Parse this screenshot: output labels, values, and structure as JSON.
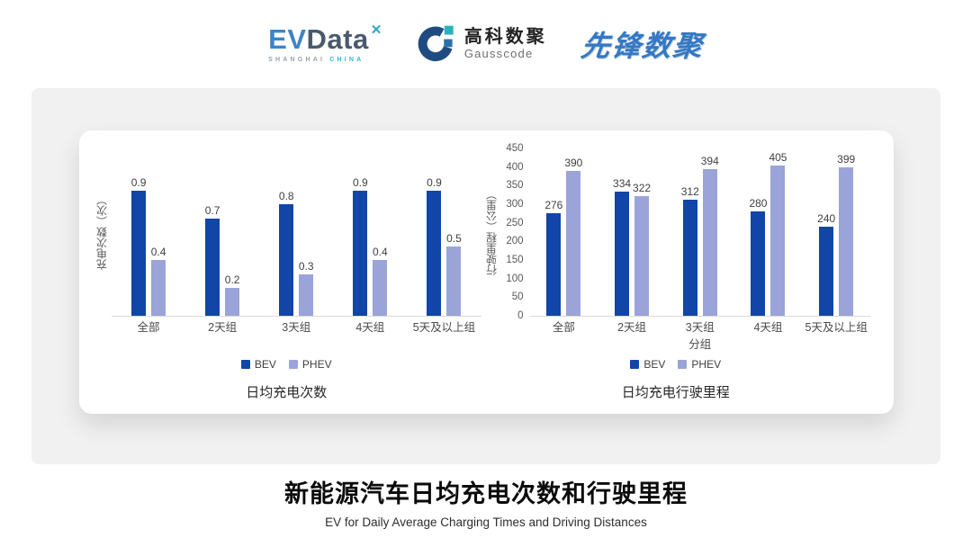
{
  "header": {
    "evdata": {
      "ev": "EV",
      "data": "Data",
      "star_icon": "✕",
      "sub_left": "SHANGHAI",
      "sub_right": "CHINA"
    },
    "gausscode": {
      "cn": "高科数聚",
      "en": "Gausscode"
    },
    "pioneer": "先锋数聚"
  },
  "colors": {
    "bev": "#1245A8",
    "phev": "#9BA4D8",
    "panel_bg": "#F1F1F1",
    "axis_line": "#D9D9D9",
    "logo_blue": "#3578C2",
    "logo_teal": "#29B3B8"
  },
  "chart_data": [
    {
      "type": "bar",
      "title": "日均充电次数",
      "ylabel": "充电次数（次）",
      "xlabel": "",
      "categories": [
        "全部",
        "2天组",
        "3天组",
        "4天组",
        "5天及以上组"
      ],
      "series": [
        {
          "name": "BEV",
          "color": "#1245A8",
          "values": [
            0.9,
            0.7,
            0.8,
            0.9,
            0.9
          ]
        },
        {
          "name": "PHEV",
          "color": "#9BA4D8",
          "values": [
            0.4,
            0.2,
            0.3,
            0.4,
            0.5
          ]
        }
      ],
      "ylim": [
        0,
        1.2
      ],
      "yticks": null,
      "grid": false,
      "legend_position": "bottom"
    },
    {
      "type": "bar",
      "title": "日均充电行驶里程",
      "ylabel": "行驶里程（公里）",
      "xlabel": "分组",
      "categories": [
        "全部",
        "2天组",
        "3天组",
        "4天组",
        "5天及以上组"
      ],
      "series": [
        {
          "name": "BEV",
          "color": "#1245A8",
          "values": [
            276,
            334,
            312,
            280,
            240
          ]
        },
        {
          "name": "PHEV",
          "color": "#9BA4D8",
          "values": [
            390,
            322,
            394,
            405,
            399
          ]
        }
      ],
      "ylim": [
        0,
        450
      ],
      "yticks": [
        0,
        50,
        100,
        150,
        200,
        250,
        300,
        350,
        400,
        450
      ],
      "grid": false,
      "legend_position": "bottom"
    }
  ],
  "footer": {
    "title": "新能源汽车日均充电次数和行驶里程",
    "subtitle": "EV for Daily Average Charging Times and Driving Distances"
  }
}
